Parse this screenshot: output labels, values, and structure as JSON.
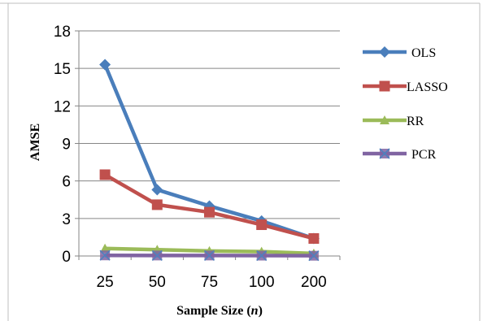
{
  "chart_data": {
    "type": "line",
    "categories": [
      "25",
      "50",
      "75",
      "100",
      "200"
    ],
    "xlabel_main": "Sample Size (",
    "xlabel_var": "n",
    "xlabel_close": ")",
    "ylabel": "AMSE",
    "ylim": [
      0,
      18
    ],
    "yticks": [
      0,
      3,
      6,
      9,
      12,
      15,
      18
    ],
    "grid": "horizontal",
    "legend_position": "right",
    "series": [
      {
        "name": "OLS",
        "color": "#4a7ebb",
        "marker": "diamond",
        "values": [
          15.3,
          5.3,
          4.0,
          2.8,
          1.4
        ]
      },
      {
        "name": "LASSO",
        "color": "#c0504d",
        "marker": "square",
        "values": [
          6.5,
          4.1,
          3.5,
          2.5,
          1.4
        ]
      },
      {
        "name": "RR",
        "color": "#9bbb59",
        "marker": "triangle",
        "values": [
          0.6,
          0.5,
          0.4,
          0.35,
          0.2
        ]
      },
      {
        "name": "PCR",
        "color": "#8064a2",
        "marker": "x",
        "values": [
          0.05,
          0.04,
          0.04,
          0.03,
          0.02
        ]
      }
    ]
  }
}
